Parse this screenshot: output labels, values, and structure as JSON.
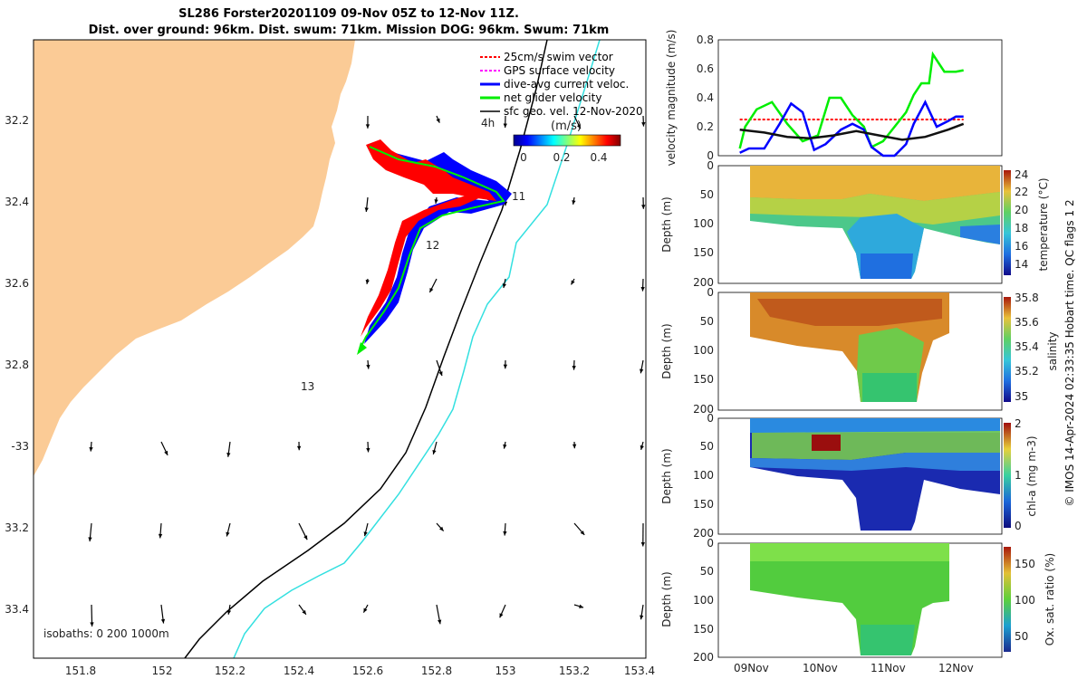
{
  "title_line1": "SL286 Forster20201109 09-Nov 05Z to 12-Nov 11Z.",
  "title_line2": "Dist. over ground: 96km. Dist. swum: 71km. Mission DOG: 96km. Swum: 71km",
  "credit": "© IMOS 14-Apr-2024 02:33:35 Hobart time. QC flags 1  2",
  "colors": {
    "land": "#fbcb96",
    "isobath_200": "#000000",
    "isobath_1000": "#33e0e0",
    "swim": "#ff0000",
    "gps": "#ff00ff",
    "dive_avg": "#0000ff",
    "net": "#00ee00",
    "sfc": "#000000"
  },
  "map": {
    "lon_ticks": [
      "151.8",
      "152",
      "152.2",
      "152.4",
      "152.6",
      "152.8",
      "153",
      "153.2",
      "153.4"
    ],
    "lat_ticks": [
      "32.2",
      "32.4",
      "32.6",
      "32.8",
      "-33",
      "33.2",
      "33.4"
    ],
    "day_labels": [
      "11",
      "12",
      "13"
    ],
    "isobaths_note": "isobaths: 0   200  1000m",
    "legend": [
      "25cm/s swim vector",
      "GPS surface velocity",
      "dive-avg current veloc.",
      "net glider velocity",
      "sfc geo. vel. 12-Nov-2020"
    ],
    "colorbar": {
      "time_label": "4h",
      "units": "(m/s)",
      "ticks": [
        "0",
        "0.2",
        "0.4"
      ]
    }
  },
  "chart_data": [
    {
      "type": "line",
      "panel": "velocity",
      "ylabel": "velocity magnitude (m/s)",
      "ylim": [
        0,
        0.8
      ],
      "yticks": [
        "0",
        "0.2",
        "0.4",
        "0.6",
        "0.8"
      ],
      "x_days_start": "09-Nov 00Z",
      "series": [
        {
          "color": "#ff0000",
          "x": [
            0.28,
            1.0,
            2.0,
            3.2
          ],
          "y": [
            0.25,
            0.25,
            0.25,
            0.25
          ]
        },
        {
          "color": "#00ee00",
          "x": [
            0.28,
            0.35,
            0.5,
            0.7,
            0.9,
            1.1,
            1.3,
            1.45,
            1.6,
            1.75,
            1.9,
            2.0,
            2.15,
            2.3,
            2.45,
            2.55,
            2.65,
            2.75,
            2.8,
            2.95,
            3.1,
            3.2
          ],
          "y": [
            0.05,
            0.2,
            0.32,
            0.37,
            0.22,
            0.1,
            0.14,
            0.4,
            0.4,
            0.28,
            0.2,
            0.06,
            0.1,
            0.2,
            0.3,
            0.42,
            0.5,
            0.5,
            0.7,
            0.58,
            0.58,
            0.59
          ]
        },
        {
          "color": "#0000ff",
          "x": [
            0.28,
            0.4,
            0.6,
            0.8,
            0.95,
            1.1,
            1.25,
            1.4,
            1.6,
            1.75,
            1.9,
            2.0,
            2.15,
            2.3,
            2.45,
            2.55,
            2.7,
            2.85,
            3.0,
            3.1,
            3.2
          ],
          "y": [
            0.02,
            0.05,
            0.05,
            0.22,
            0.36,
            0.3,
            0.04,
            0.08,
            0.18,
            0.22,
            0.18,
            0.06,
            0.0,
            0.0,
            0.08,
            0.22,
            0.37,
            0.2,
            0.24,
            0.27,
            0.27
          ]
        },
        {
          "color": "#111111",
          "x": [
            0.28,
            0.6,
            0.9,
            1.2,
            1.5,
            1.8,
            2.1,
            2.4,
            2.7,
            3.0,
            3.2
          ],
          "y": [
            0.18,
            0.16,
            0.13,
            0.12,
            0.14,
            0.17,
            0.14,
            0.11,
            0.13,
            0.18,
            0.22
          ]
        }
      ]
    },
    {
      "type": "heatmap",
      "panel": "temperature",
      "ylabel": "Depth (m)",
      "colorbar_label": "temperature (°C)",
      "ylim": [
        200,
        0
      ],
      "yticks": [
        "0",
        "50",
        "100",
        "150",
        "200"
      ],
      "clim": [
        13,
        24
      ],
      "cbar_ticks": [
        "24",
        "22",
        "20",
        "18",
        "16",
        "14"
      ]
    },
    {
      "type": "heatmap",
      "panel": "salinity",
      "ylabel": "Depth (m)",
      "colorbar_label": "salinity",
      "ylim": [
        200,
        0
      ],
      "yticks": [
        "0",
        "50",
        "100",
        "150",
        "200"
      ],
      "clim": [
        34.95,
        35.8
      ],
      "cbar_ticks": [
        "35.8",
        "35.6",
        "35.4",
        "35.2",
        "35"
      ]
    },
    {
      "type": "heatmap",
      "panel": "chla",
      "ylabel": "Depth (m)",
      "colorbar_label": "chl-a (mg m-3)",
      "ylim": [
        200,
        0
      ],
      "yticks": [
        "0",
        "50",
        "100",
        "150",
        "200"
      ],
      "clim": [
        0,
        2
      ],
      "cbar_ticks": [
        "2",
        "1",
        "0"
      ]
    },
    {
      "type": "heatmap",
      "panel": "oxygen",
      "ylabel": "Depth (m)",
      "colorbar_label": "Ox. sat. ratio (%)",
      "ylim": [
        200,
        0
      ],
      "yticks": [
        "0",
        "50",
        "100",
        "150",
        "200"
      ],
      "clim": [
        30,
        175
      ],
      "cbar_ticks": [
        "150",
        "100",
        "50"
      ],
      "xticks": [
        "09Nov",
        "10Nov",
        "11Nov",
        "12Nov"
      ]
    }
  ]
}
